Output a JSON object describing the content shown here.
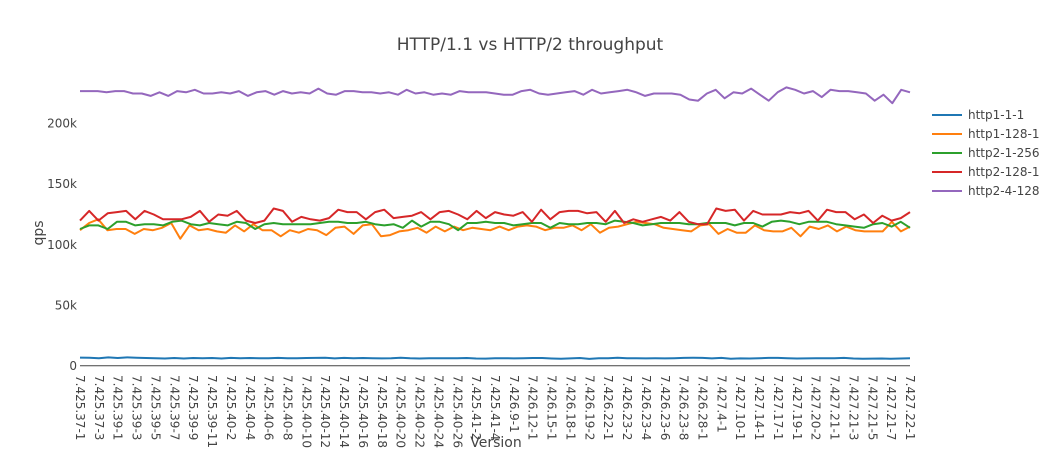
{
  "chart_data": {
    "type": "line",
    "title": "HTTP/1.1 vs HTTP/2 throughput",
    "xlabel": "Version",
    "ylabel": "qps",
    "ylim": [
      -1000,
      232000
    ],
    "yticks": [
      0,
      50000,
      100000,
      150000,
      200000
    ],
    "ytick_labels": [
      "0",
      "50k",
      "100k",
      "150k",
      "200k"
    ],
    "grid": false,
    "legend_position": "right",
    "x_tick_labels": [
      "7.425.37-1",
      "7.425.37-3",
      "7.425.39-1",
      "7.425.39-3",
      "7.425.39-5",
      "7.425.39-7",
      "7.425.39-9",
      "7.425.39-11",
      "7.425.40-2",
      "7.425.40-4",
      "7.425.40-6",
      "7.425.40-8",
      "7.425.40-10",
      "7.425.40-12",
      "7.425.40-14",
      "7.425.40-16",
      "7.425.40-18",
      "7.425.40-20",
      "7.425.40-22",
      "7.425.40-24",
      "7.425.40-26",
      "7.425.41-2",
      "7.425.41-4",
      "7.426.9-1",
      "7.426.12-1",
      "7.426.15-1",
      "7.426.18-1",
      "7.426.19-2",
      "7.426.22-1",
      "7.426.23-2",
      "7.426.23-4",
      "7.426.23-6",
      "7.426.23-8",
      "7.426.28-1",
      "7.427.4-1",
      "7.427.10-1",
      "7.427.14-1",
      "7.427.17-1",
      "7.427.19-1",
      "7.427.20-2",
      "7.427.21-1",
      "7.427.21-3",
      "7.427.21-5",
      "7.427.21-7",
      "7.427.22-1"
    ],
    "series": [
      {
        "name": "http1-1-1",
        "color": "#1f77b4",
        "values": [
          6800,
          6600,
          6300,
          6900,
          6400,
          6900,
          6700,
          6400,
          6200,
          6000,
          6400,
          6000,
          6400,
          6300,
          6400,
          6000,
          6500,
          6300,
          6400,
          6200,
          6200,
          6500,
          6300,
          6300,
          6400,
          6500,
          6600,
          6100,
          6500,
          6300,
          6400,
          6300,
          6100,
          6300,
          6700,
          6200,
          6000,
          6300,
          6300,
          6200,
          6200,
          6400,
          6000,
          5900,
          6200,
          6300,
          6100,
          6300,
          6400,
          6400,
          6000,
          5800,
          6100,
          6400,
          5700,
          6200,
          6300,
          6700,
          6200,
          6200,
          6100,
          6200,
          6100,
          6300,
          6500,
          6600,
          6500,
          6100,
          6500,
          5800,
          6100,
          6000,
          6200,
          6500,
          6500,
          6200,
          6000,
          6100,
          6200,
          6200,
          6200,
          6500,
          6000,
          5800,
          5900,
          6000,
          5800,
          6000,
          6200
        ]
      },
      {
        "name": "http1-128-1",
        "color": "#ff7f0e",
        "values": [
          112000,
          118000,
          121000,
          112000,
          113000,
          113000,
          109000,
          113000,
          112000,
          114000,
          118000,
          105000,
          116000,
          112000,
          113000,
          111000,
          110000,
          116000,
          111000,
          117000,
          112000,
          112000,
          107000,
          112000,
          110000,
          113000,
          112000,
          108000,
          114000,
          115000,
          109000,
          116000,
          117000,
          107000,
          108000,
          111000,
          112000,
          114000,
          110000,
          115000,
          111000,
          115000,
          112000,
          114000,
          113000,
          112000,
          115000,
          112000,
          115000,
          116000,
          115000,
          112000,
          114000,
          114000,
          116000,
          112000,
          117000,
          110000,
          114000,
          115000,
          117000,
          119000,
          118000,
          117000,
          114000,
          113000,
          112000,
          111000,
          116000,
          117000,
          109000,
          113000,
          110000,
          110000,
          116000,
          112000,
          111000,
          111000,
          114000,
          107000,
          115000,
          113000,
          116000,
          111000,
          115000,
          112000,
          111000,
          111000,
          111000,
          119000,
          111000,
          115000
        ]
      },
      {
        "name": "http2-1-256",
        "color": "#2ca02c",
        "values": [
          113000,
          116000,
          116000,
          113000,
          119000,
          119000,
          116000,
          117000,
          117000,
          116000,
          119000,
          120000,
          117000,
          116000,
          118000,
          117000,
          116000,
          119000,
          118000,
          113000,
          117000,
          118000,
          117000,
          117000,
          117000,
          117000,
          118000,
          119000,
          119000,
          118000,
          118000,
          119000,
          117000,
          116000,
          117000,
          114000,
          120000,
          115000,
          119000,
          119000,
          117000,
          112000,
          118000,
          118000,
          119000,
          118000,
          118000,
          116000,
          117000,
          118000,
          118000,
          114000,
          118000,
          117000,
          117000,
          118000,
          118000,
          117000,
          120000,
          119000,
          118000,
          116000,
          117000,
          118000,
          118000,
          118000,
          117000,
          117000,
          118000,
          118000,
          118000,
          116000,
          118000,
          118000,
          115000,
          119000,
          120000,
          119000,
          117000,
          119000,
          119000,
          119000,
          117000,
          116000,
          115000,
          114000,
          117000,
          118000,
          115000,
          119000,
          114000
        ]
      },
      {
        "name": "http2-128-1",
        "color": "#d62728",
        "values": [
          120000,
          128000,
          120000,
          126000,
          127000,
          128000,
          121000,
          128000,
          125000,
          121000,
          121000,
          121000,
          123000,
          128000,
          119000,
          125000,
          124000,
          128000,
          120000,
          118000,
          120000,
          130000,
          128000,
          119000,
          123000,
          121000,
          120000,
          122000,
          129000,
          127000,
          127000,
          121000,
          127000,
          129000,
          122000,
          123000,
          124000,
          127000,
          121000,
          127000,
          128000,
          125000,
          121000,
          128000,
          122000,
          127000,
          125000,
          124000,
          127000,
          119000,
          129000,
          121000,
          127000,
          128000,
          128000,
          126000,
          127000,
          119000,
          128000,
          118000,
          121000,
          119000,
          121000,
          123000,
          120000,
          127000,
          119000,
          117000,
          117000,
          130000,
          128000,
          129000,
          120000,
          128000,
          125000,
          125000,
          125000,
          127000,
          126000,
          128000,
          120000,
          129000,
          127000,
          127000,
          121000,
          125000,
          118000,
          124000,
          120000,
          122000,
          127000
        ]
      },
      {
        "name": "http2-4-128",
        "color": "#9467bd",
        "values": [
          227000,
          227000,
          227000,
          226000,
          227000,
          227000,
          225000,
          225000,
          223000,
          226000,
          223000,
          227000,
          226000,
          228000,
          225000,
          225000,
          226000,
          225000,
          227000,
          223000,
          226000,
          227000,
          224000,
          227000,
          225000,
          226000,
          225000,
          229000,
          225000,
          224000,
          227000,
          227000,
          226000,
          226000,
          225000,
          226000,
          224000,
          228000,
          225000,
          226000,
          224000,
          225000,
          224000,
          227000,
          226000,
          226000,
          226000,
          225000,
          224000,
          224000,
          227000,
          228000,
          225000,
          224000,
          225000,
          226000,
          227000,
          224000,
          228000,
          225000,
          226000,
          227000,
          228000,
          226000,
          223000,
          225000,
          225000,
          225000,
          224000,
          220000,
          219000,
          225000,
          228000,
          221000,
          226000,
          225000,
          229000,
          224000,
          219000,
          226000,
          230000,
          228000,
          225000,
          227000,
          222000,
          228000,
          227000,
          227000,
          226000,
          225000,
          219000,
          224000,
          217000,
          228000,
          226000
        ]
      }
    ]
  }
}
